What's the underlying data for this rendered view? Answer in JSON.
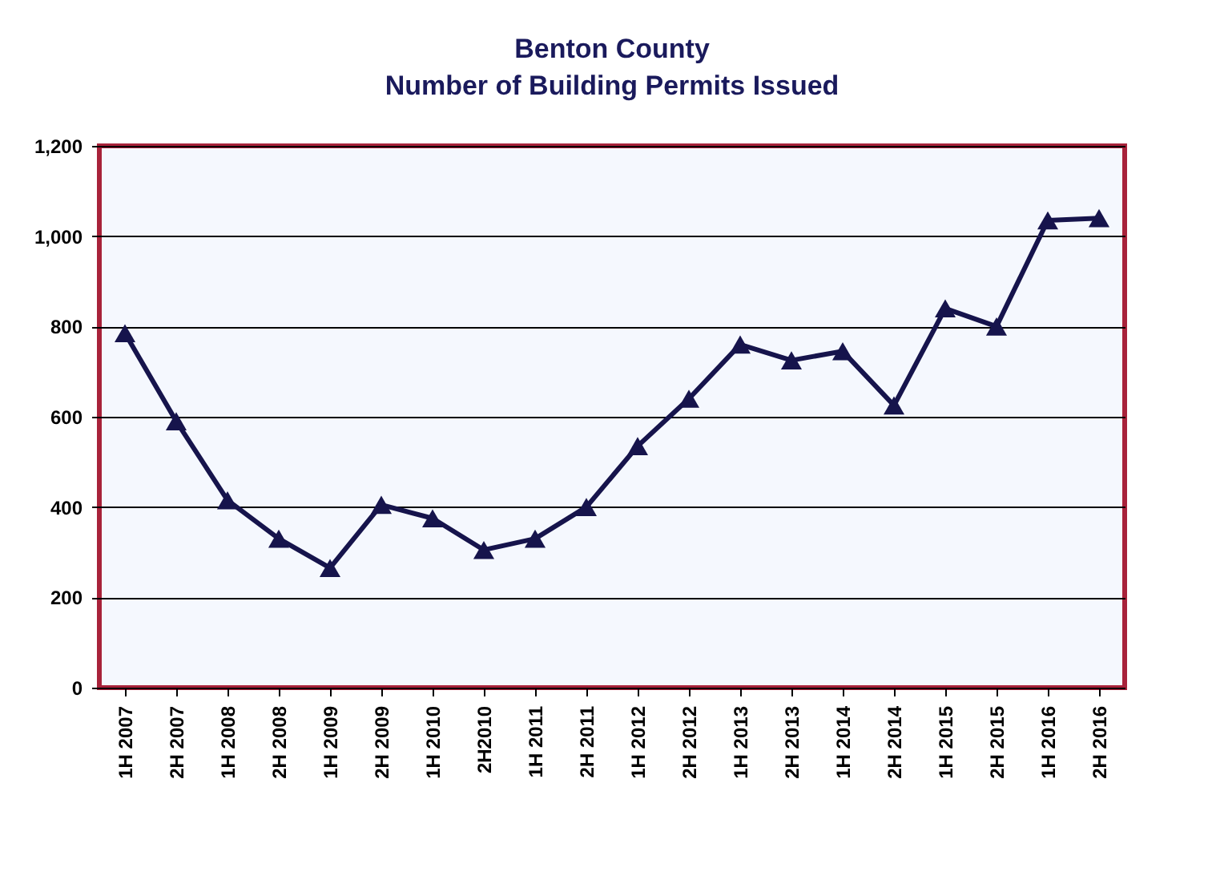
{
  "chart_data": {
    "type": "line",
    "title": "Benton County",
    "subtitle": "Number of Building Permits Issued",
    "categories": [
      "1H 2007",
      "2H 2007",
      "1H 2008",
      "2H 2008",
      "1H 2009",
      "2H 2009",
      "1H 2010",
      "2H2010",
      "1H 2011",
      "2H 2011",
      "1H 2012",
      "2H 2012",
      "1H 2013",
      "2H 2013",
      "1H 2014",
      "2H 2014",
      "1H 2015",
      "2H 2015",
      "1H 2016",
      "2H 2016"
    ],
    "series": [
      {
        "color": "#16144c",
        "values": [
          785,
          590,
          415,
          330,
          265,
          405,
          375,
          305,
          330,
          400,
          535,
          640,
          760,
          725,
          745,
          625,
          840,
          800,
          1035,
          1040
        ]
      }
    ],
    "ylim": [
      0,
      1200
    ],
    "yticks": [
      0,
      {
        "value": 200,
        "label": "200"
      },
      {
        "value": 400,
        "label": "400"
      },
      {
        "value": 600,
        "label": "600"
      },
      {
        "value": 800,
        "label": "800"
      },
      {
        "value": 1000,
        "label": "1,000"
      },
      {
        "value": 1200,
        "label": "1,200"
      }
    ],
    "grid": "y",
    "marker": "triangle",
    "line_style": "solid"
  }
}
